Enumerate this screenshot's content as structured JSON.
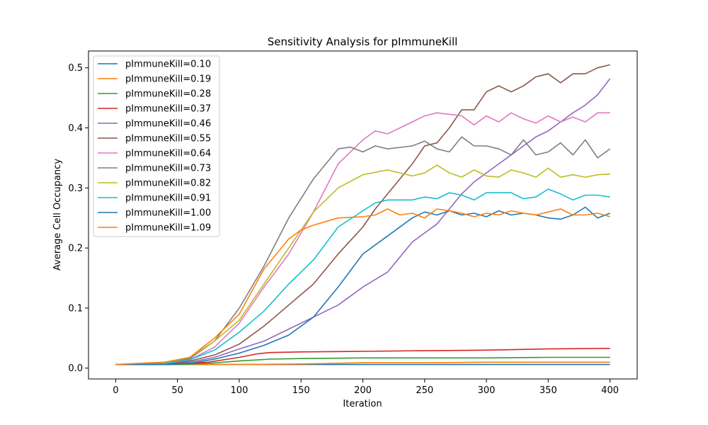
{
  "chart_data": {
    "type": "line",
    "title": "Sensitivity Analysis for pImmuneKill",
    "xlabel": "Iteration",
    "ylabel": "Average Cell Occupancy",
    "xlim": [
      -22,
      422
    ],
    "ylim": [
      -0.018,
      0.528
    ],
    "xticks": [
      0,
      50,
      100,
      150,
      200,
      250,
      300,
      350,
      400
    ],
    "yticks": [
      0.0,
      0.1,
      0.2,
      0.3,
      0.4,
      0.5
    ],
    "xtick_labels": [
      "0",
      "50",
      "100",
      "150",
      "200",
      "250",
      "300",
      "350",
      "400"
    ],
    "ytick_labels": [
      "0.0",
      "0.1",
      "0.2",
      "0.3",
      "0.4",
      "0.5"
    ],
    "grid": false,
    "legend_position": "top-left",
    "series": [
      {
        "name": "pImmuneKill=0.10",
        "color": "#1f77b4",
        "points": [
          [
            0,
            0.006
          ],
          [
            50,
            0.006
          ],
          [
            100,
            0.006
          ],
          [
            150,
            0.006
          ],
          [
            200,
            0.006
          ],
          [
            250,
            0.006
          ],
          [
            300,
            0.006
          ],
          [
            350,
            0.006
          ],
          [
            400,
            0.006
          ]
        ]
      },
      {
        "name": "pImmuneKill=0.19",
        "color": "#ff7f0e",
        "points": [
          [
            0,
            0.006
          ],
          [
            50,
            0.006
          ],
          [
            100,
            0.006
          ],
          [
            150,
            0.007
          ],
          [
            200,
            0.009
          ],
          [
            250,
            0.009
          ],
          [
            300,
            0.01
          ],
          [
            350,
            0.01
          ],
          [
            400,
            0.01
          ]
        ]
      },
      {
        "name": "pImmuneKill=0.28",
        "color": "#2ca02c",
        "points": [
          [
            0,
            0.006
          ],
          [
            50,
            0.006
          ],
          [
            75,
            0.008
          ],
          [
            100,
            0.012
          ],
          [
            125,
            0.015
          ],
          [
            150,
            0.016
          ],
          [
            200,
            0.017
          ],
          [
            250,
            0.017
          ],
          [
            300,
            0.017
          ],
          [
            350,
            0.018
          ],
          [
            400,
            0.018
          ]
        ]
      },
      {
        "name": "pImmuneKill=0.37",
        "color": "#d62728",
        "points": [
          [
            0,
            0.006
          ],
          [
            50,
            0.007
          ],
          [
            75,
            0.01
          ],
          [
            100,
            0.018
          ],
          [
            115,
            0.024
          ],
          [
            125,
            0.026
          ],
          [
            150,
            0.027
          ],
          [
            200,
            0.028
          ],
          [
            250,
            0.029
          ],
          [
            300,
            0.03
          ],
          [
            350,
            0.032
          ],
          [
            400,
            0.033
          ]
        ]
      },
      {
        "name": "pImmuneKill=0.46",
        "color": "#9467bd",
        "points": [
          [
            0,
            0.006
          ],
          [
            40,
            0.006
          ],
          [
            60,
            0.01
          ],
          [
            80,
            0.018
          ],
          [
            100,
            0.032
          ],
          [
            120,
            0.045
          ],
          [
            140,
            0.065
          ],
          [
            160,
            0.085
          ],
          [
            180,
            0.105
          ],
          [
            200,
            0.135
          ],
          [
            220,
            0.16
          ],
          [
            230,
            0.185
          ],
          [
            240,
            0.21
          ],
          [
            250,
            0.225
          ],
          [
            260,
            0.24
          ],
          [
            270,
            0.265
          ],
          [
            280,
            0.29
          ],
          [
            290,
            0.31
          ],
          [
            300,
            0.325
          ],
          [
            310,
            0.34
          ],
          [
            320,
            0.355
          ],
          [
            330,
            0.37
          ],
          [
            340,
            0.385
          ],
          [
            350,
            0.395
          ],
          [
            360,
            0.41
          ],
          [
            370,
            0.425
          ],
          [
            380,
            0.438
          ],
          [
            390,
            0.455
          ],
          [
            400,
            0.482
          ]
        ]
      },
      {
        "name": "pImmuneKill=0.55",
        "color": "#8c564b",
        "points": [
          [
            0,
            0.006
          ],
          [
            40,
            0.006
          ],
          [
            60,
            0.012
          ],
          [
            80,
            0.022
          ],
          [
            100,
            0.04
          ],
          [
            120,
            0.07
          ],
          [
            140,
            0.105
          ],
          [
            160,
            0.14
          ],
          [
            180,
            0.19
          ],
          [
            200,
            0.235
          ],
          [
            210,
            0.265
          ],
          [
            220,
            0.29
          ],
          [
            240,
            0.34
          ],
          [
            250,
            0.37
          ],
          [
            260,
            0.375
          ],
          [
            270,
            0.4
          ],
          [
            280,
            0.43
          ],
          [
            290,
            0.43
          ],
          [
            300,
            0.46
          ],
          [
            310,
            0.47
          ],
          [
            320,
            0.46
          ],
          [
            330,
            0.47
          ],
          [
            340,
            0.485
          ],
          [
            350,
            0.49
          ],
          [
            360,
            0.475
          ],
          [
            370,
            0.49
          ],
          [
            380,
            0.49
          ],
          [
            390,
            0.5
          ],
          [
            400,
            0.505
          ]
        ]
      },
      {
        "name": "pImmuneKill=0.64",
        "color": "#e377c2",
        "points": [
          [
            0,
            0.006
          ],
          [
            40,
            0.008
          ],
          [
            60,
            0.014
          ],
          [
            80,
            0.035
          ],
          [
            100,
            0.075
          ],
          [
            120,
            0.135
          ],
          [
            140,
            0.19
          ],
          [
            160,
            0.26
          ],
          [
            180,
            0.34
          ],
          [
            200,
            0.38
          ],
          [
            210,
            0.395
          ],
          [
            220,
            0.39
          ],
          [
            240,
            0.41
          ],
          [
            250,
            0.42
          ],
          [
            260,
            0.425
          ],
          [
            280,
            0.42
          ],
          [
            290,
            0.405
          ],
          [
            300,
            0.42
          ],
          [
            310,
            0.41
          ],
          [
            320,
            0.425
          ],
          [
            330,
            0.415
          ],
          [
            340,
            0.408
          ],
          [
            350,
            0.42
          ],
          [
            360,
            0.41
          ],
          [
            370,
            0.418
          ],
          [
            380,
            0.41
          ],
          [
            390,
            0.425
          ],
          [
            400,
            0.425
          ]
        ]
      },
      {
        "name": "pImmuneKill=0.73",
        "color": "#7f7f7f",
        "points": [
          [
            0,
            0.006
          ],
          [
            40,
            0.008
          ],
          [
            60,
            0.016
          ],
          [
            80,
            0.045
          ],
          [
            100,
            0.1
          ],
          [
            120,
            0.17
          ],
          [
            140,
            0.25
          ],
          [
            160,
            0.315
          ],
          [
            180,
            0.365
          ],
          [
            190,
            0.368
          ],
          [
            200,
            0.36
          ],
          [
            210,
            0.37
          ],
          [
            220,
            0.365
          ],
          [
            240,
            0.37
          ],
          [
            250,
            0.378
          ],
          [
            260,
            0.365
          ],
          [
            270,
            0.36
          ],
          [
            280,
            0.385
          ],
          [
            290,
            0.37
          ],
          [
            300,
            0.37
          ],
          [
            310,
            0.365
          ],
          [
            320,
            0.355
          ],
          [
            330,
            0.38
          ],
          [
            340,
            0.355
          ],
          [
            350,
            0.36
          ],
          [
            360,
            0.375
          ],
          [
            370,
            0.355
          ],
          [
            380,
            0.38
          ],
          [
            390,
            0.35
          ],
          [
            400,
            0.365
          ]
        ]
      },
      {
        "name": "pImmuneKill=0.82",
        "color": "#bcbd22",
        "points": [
          [
            0,
            0.006
          ],
          [
            40,
            0.01
          ],
          [
            60,
            0.018
          ],
          [
            80,
            0.045
          ],
          [
            100,
            0.08
          ],
          [
            120,
            0.14
          ],
          [
            140,
            0.2
          ],
          [
            160,
            0.26
          ],
          [
            180,
            0.3
          ],
          [
            200,
            0.322
          ],
          [
            220,
            0.33
          ],
          [
            240,
            0.32
          ],
          [
            250,
            0.325
          ],
          [
            260,
            0.338
          ],
          [
            270,
            0.325
          ],
          [
            280,
            0.318
          ],
          [
            290,
            0.33
          ],
          [
            300,
            0.32
          ],
          [
            310,
            0.318
          ],
          [
            320,
            0.33
          ],
          [
            330,
            0.325
          ],
          [
            340,
            0.318
          ],
          [
            350,
            0.333
          ],
          [
            360,
            0.318
          ],
          [
            370,
            0.322
          ],
          [
            380,
            0.318
          ],
          [
            390,
            0.322
          ],
          [
            400,
            0.323
          ]
        ]
      },
      {
        "name": "pImmuneKill=0.91",
        "color": "#17becf",
        "points": [
          [
            0,
            0.006
          ],
          [
            40,
            0.008
          ],
          [
            60,
            0.014
          ],
          [
            80,
            0.03
          ],
          [
            100,
            0.06
          ],
          [
            120,
            0.095
          ],
          [
            140,
            0.14
          ],
          [
            160,
            0.18
          ],
          [
            180,
            0.235
          ],
          [
            200,
            0.262
          ],
          [
            210,
            0.275
          ],
          [
            220,
            0.28
          ],
          [
            240,
            0.28
          ],
          [
            250,
            0.285
          ],
          [
            260,
            0.282
          ],
          [
            270,
            0.292
          ],
          [
            280,
            0.288
          ],
          [
            290,
            0.28
          ],
          [
            300,
            0.292
          ],
          [
            310,
            0.292
          ],
          [
            320,
            0.292
          ],
          [
            330,
            0.282
          ],
          [
            340,
            0.285
          ],
          [
            350,
            0.298
          ],
          [
            360,
            0.29
          ],
          [
            370,
            0.28
          ],
          [
            380,
            0.288
          ],
          [
            390,
            0.288
          ],
          [
            400,
            0.285
          ]
        ]
      },
      {
        "name": "pImmuneKill=1.00",
        "color": "#1f77b4",
        "points": [
          [
            0,
            0.006
          ],
          [
            40,
            0.006
          ],
          [
            60,
            0.008
          ],
          [
            80,
            0.015
          ],
          [
            100,
            0.025
          ],
          [
            120,
            0.038
          ],
          [
            140,
            0.055
          ],
          [
            160,
            0.085
          ],
          [
            180,
            0.135
          ],
          [
            200,
            0.19
          ],
          [
            220,
            0.22
          ],
          [
            240,
            0.25
          ],
          [
            250,
            0.26
          ],
          [
            260,
            0.255
          ],
          [
            270,
            0.262
          ],
          [
            280,
            0.255
          ],
          [
            290,
            0.258
          ],
          [
            300,
            0.252
          ],
          [
            310,
            0.262
          ],
          [
            320,
            0.255
          ],
          [
            330,
            0.258
          ],
          [
            340,
            0.255
          ],
          [
            350,
            0.25
          ],
          [
            360,
            0.248
          ],
          [
            370,
            0.255
          ],
          [
            380,
            0.268
          ],
          [
            390,
            0.25
          ],
          [
            400,
            0.258
          ]
        ]
      },
      {
        "name": "pImmuneKill=1.09",
        "color": "#ff7f0e",
        "points": [
          [
            0,
            0.006
          ],
          [
            40,
            0.01
          ],
          [
            60,
            0.018
          ],
          [
            80,
            0.05
          ],
          [
            100,
            0.09
          ],
          [
            120,
            0.165
          ],
          [
            140,
            0.215
          ],
          [
            150,
            0.23
          ],
          [
            160,
            0.238
          ],
          [
            180,
            0.25
          ],
          [
            200,
            0.252
          ],
          [
            210,
            0.255
          ],
          [
            220,
            0.265
          ],
          [
            230,
            0.255
          ],
          [
            240,
            0.258
          ],
          [
            250,
            0.25
          ],
          [
            260,
            0.265
          ],
          [
            270,
            0.262
          ],
          [
            280,
            0.258
          ],
          [
            290,
            0.252
          ],
          [
            300,
            0.258
          ],
          [
            310,
            0.255
          ],
          [
            320,
            0.262
          ],
          [
            330,
            0.258
          ],
          [
            340,
            0.255
          ],
          [
            350,
            0.26
          ],
          [
            360,
            0.265
          ],
          [
            370,
            0.255
          ],
          [
            380,
            0.255
          ],
          [
            390,
            0.258
          ],
          [
            400,
            0.252
          ]
        ]
      }
    ]
  }
}
